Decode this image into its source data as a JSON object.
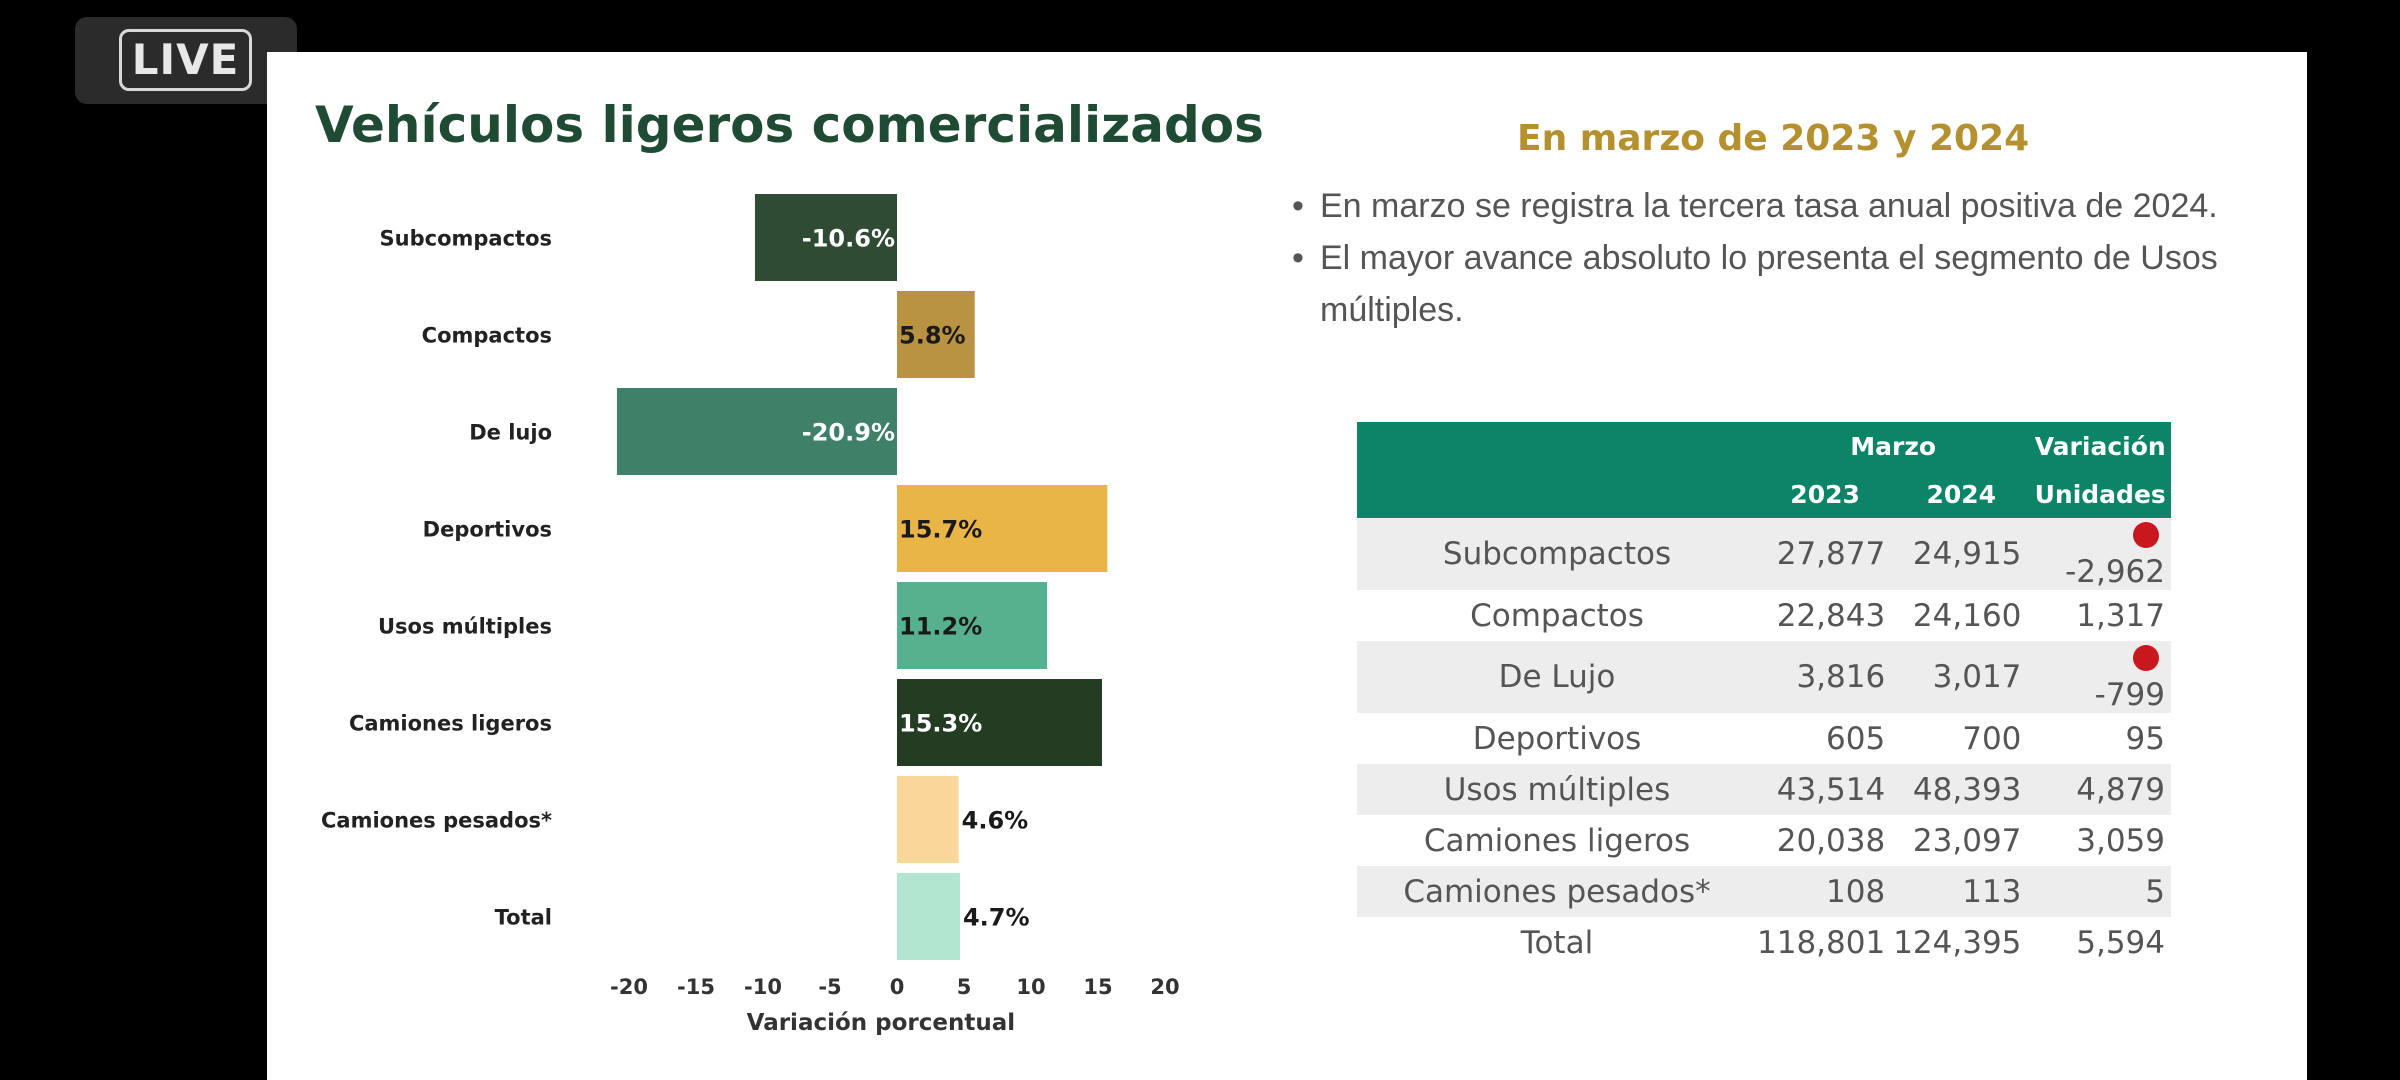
{
  "live_badge": "LIVE",
  "slide": {
    "title": "Vehículos ligeros comercializados",
    "subtitle": "En marzo de 2023 y 2024",
    "bullets": [
      "En marzo se registra la tercera tasa anual positiva de 2024.",
      "El mayor avance absoluto lo presenta el segmento de Usos múltiples."
    ]
  },
  "chart_data": {
    "type": "bar",
    "orientation": "horizontal",
    "title": "",
    "xlabel": "Variación porcentual",
    "ylabel": "",
    "xlim": [
      -20,
      20
    ],
    "xticks": [
      -20,
      -15,
      -10,
      -5,
      0,
      5,
      10,
      15,
      20
    ],
    "categories": [
      "Subcompactos",
      "Compactos",
      "De lujo",
      "Deportivos",
      "Usos múltiples",
      "Camiones ligeros",
      "Camiones pesados*",
      "Total"
    ],
    "values": [
      -10.6,
      5.8,
      -20.9,
      15.7,
      11.2,
      15.3,
      4.6,
      4.7
    ],
    "data_labels": [
      "-10.6%",
      "5.8%",
      "-20.9%",
      "15.7%",
      "11.2%",
      "15.3%",
      "4.6%",
      "4.7%"
    ],
    "colors": [
      "#2f4b33",
      "#b99242",
      "#3f8068",
      "#e9b547",
      "#57b08e",
      "#233c22",
      "#f9d699",
      "#b3e6d0"
    ],
    "label_colors": [
      "#ffffff",
      "#1a1a1a",
      "#ffffff",
      "#1a1a1a",
      "#1a1a1a",
      "#ffffff",
      "#1a1a1a",
      "#1a1a1a"
    ]
  },
  "table": {
    "header_top": {
      "marzo": "Marzo",
      "variacion": "Variación"
    },
    "header_bottom": {
      "y2023": "2023",
      "y2024": "2024",
      "unidades": "Unidades"
    },
    "rows": [
      {
        "name": "Subcompactos",
        "y2023": "27,877",
        "y2024": "24,915",
        "variation": "-2,962",
        "negative": true
      },
      {
        "name": "Compactos",
        "y2023": "22,843",
        "y2024": "24,160",
        "variation": "1,317",
        "negative": false
      },
      {
        "name": "De Lujo",
        "y2023": "3,816",
        "y2024": "3,017",
        "variation": "-799",
        "negative": true
      },
      {
        "name": "Deportivos",
        "y2023": "605",
        "y2024": "700",
        "variation": "95",
        "negative": false
      },
      {
        "name": "Usos múltiples",
        "y2023": "43,514",
        "y2024": "48,393",
        "variation": "4,879",
        "negative": false
      },
      {
        "name": "Camiones ligeros",
        "y2023": "20,038",
        "y2024": "23,097",
        "variation": "3,059",
        "negative": false
      },
      {
        "name": "Camiones pesados*",
        "y2023": "108",
        "y2024": "113",
        "variation": "5",
        "negative": false
      },
      {
        "name": "Total",
        "y2023": "118,801",
        "y2024": "124,395",
        "variation": "5,594",
        "negative": false
      }
    ]
  },
  "colors": {
    "header_green": "#0c8467",
    "title_green": "#1f4a33",
    "subtitle_gold": "#b5902f",
    "negative_dot": "#c8171d"
  }
}
